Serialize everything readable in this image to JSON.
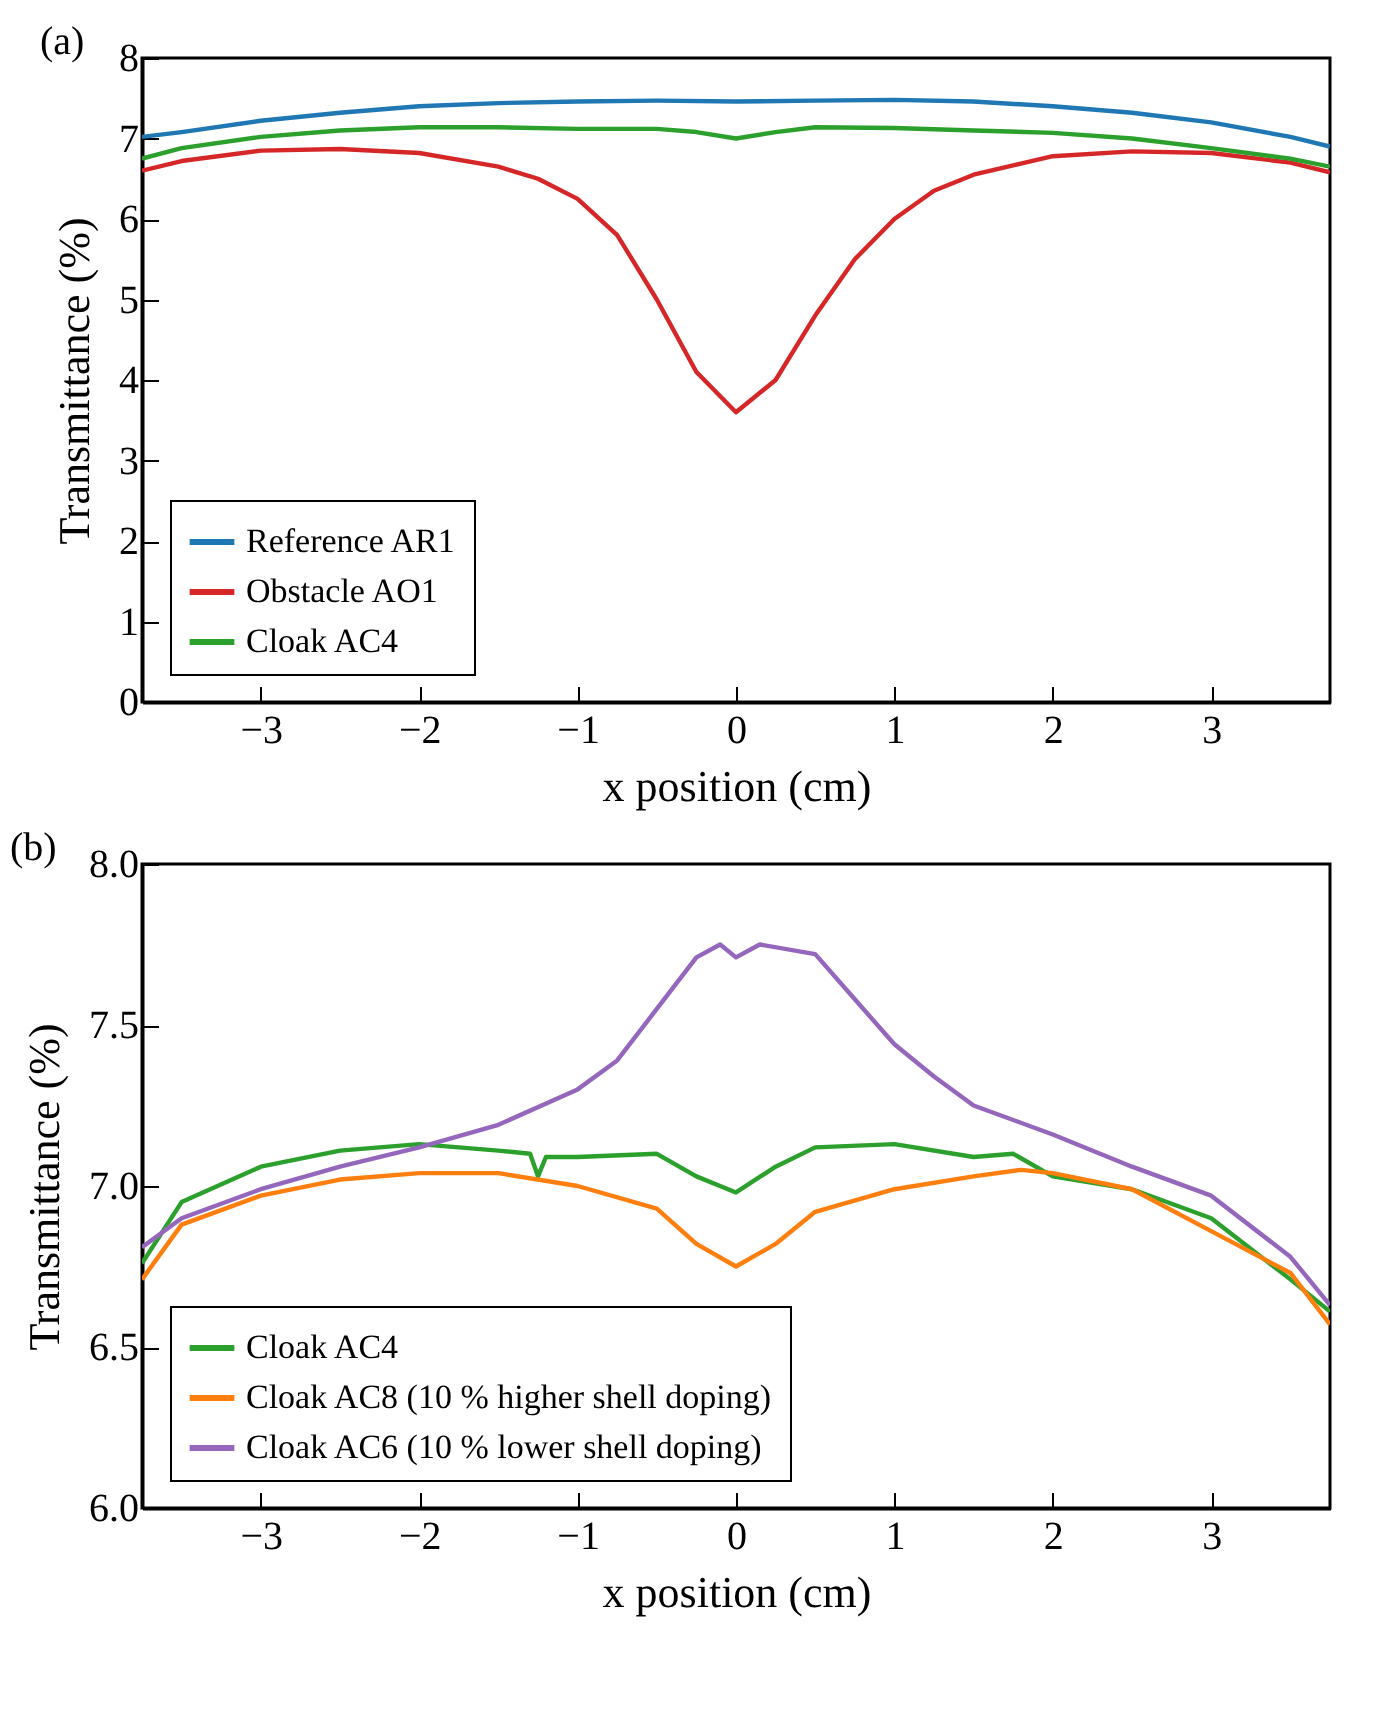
{
  "chart_data": [
    {
      "type": "line",
      "title": "(a)",
      "xlabel": "x position (cm)",
      "ylabel": "Transmittance (%)",
      "xlim": [
        -3.75,
        3.75
      ],
      "ylim": [
        0,
        8
      ],
      "xticks": [
        {
          "value": -3,
          "label": "−3"
        },
        {
          "value": -2,
          "label": "−2"
        },
        {
          "value": -1,
          "label": "−1"
        },
        0,
        1,
        2,
        3
      ],
      "yticks": [
        0,
        1,
        2,
        3,
        4,
        5,
        6,
        7,
        8
      ],
      "legend": "bottom left",
      "series": [
        {
          "name": "Reference AR1",
          "color": "#1f77b4",
          "x": [
            -3.75,
            -3.5,
            -3,
            -2.5,
            -2,
            -1.5,
            -1,
            -0.5,
            0,
            0.5,
            1,
            1.5,
            2,
            2.5,
            3,
            3.5,
            3.75
          ],
          "values": [
            7.02,
            7.08,
            7.22,
            7.32,
            7.4,
            7.44,
            7.46,
            7.47,
            7.46,
            7.47,
            7.48,
            7.46,
            7.4,
            7.32,
            7.2,
            7.02,
            6.9
          ]
        },
        {
          "name": "Obstacle AO1",
          "color": "#d62728",
          "x": [
            -3.75,
            -3.5,
            -3,
            -2.5,
            -2,
            -1.5,
            -1.25,
            -1,
            -0.75,
            -0.5,
            -0.25,
            0,
            0.25,
            0.5,
            0.75,
            1,
            1.25,
            1.5,
            2,
            2.5,
            3,
            3.5,
            3.75
          ],
          "values": [
            6.6,
            6.72,
            6.85,
            6.87,
            6.82,
            6.65,
            6.5,
            6.25,
            5.8,
            5.0,
            4.1,
            3.6,
            4.0,
            4.8,
            5.5,
            6.0,
            6.35,
            6.55,
            6.78,
            6.84,
            6.82,
            6.7,
            6.58
          ]
        },
        {
          "name": "Cloak AC4",
          "color": "#2ca02c",
          "x": [
            -3.75,
            -3.5,
            -3,
            -2.5,
            -2,
            -1.5,
            -1,
            -0.5,
            -0.25,
            0,
            0.25,
            0.5,
            1,
            1.5,
            2,
            2.5,
            3,
            3.5,
            3.75
          ],
          "values": [
            6.75,
            6.88,
            7.02,
            7.1,
            7.14,
            7.14,
            7.12,
            7.12,
            7.08,
            7.0,
            7.08,
            7.14,
            7.13,
            7.1,
            7.07,
            7.0,
            6.88,
            6.75,
            6.65
          ]
        }
      ]
    },
    {
      "type": "line",
      "title": "(b)",
      "xlabel": "x position (cm)",
      "ylabel": "Transmittance (%)",
      "xlim": [
        -3.75,
        3.75
      ],
      "ylim": [
        6,
        8
      ],
      "xticks": [
        {
          "value": -3,
          "label": "−3"
        },
        {
          "value": -2,
          "label": "−2"
        },
        {
          "value": -1,
          "label": "−1"
        },
        0,
        1,
        2,
        3
      ],
      "yticks": [
        {
          "value": 6,
          "label": "6.0"
        },
        6.5,
        {
          "value": 7,
          "label": "7.0"
        },
        7.5,
        {
          "value": 8,
          "label": "8.0"
        }
      ],
      "legend": "bottom left",
      "series": [
        {
          "name": "Cloak AC4",
          "color": "#2ca02c",
          "x": [
            -3.75,
            -3.5,
            -3,
            -2.5,
            -2,
            -1.5,
            -1.3,
            -1.25,
            -1.2,
            -1,
            -0.5,
            -0.25,
            0,
            0.25,
            0.5,
            1,
            1.5,
            1.75,
            2,
            2.5,
            3,
            3.5,
            3.75
          ],
          "values": [
            6.76,
            6.95,
            7.06,
            7.11,
            7.13,
            7.11,
            7.1,
            7.03,
            7.09,
            7.09,
            7.1,
            7.03,
            6.98,
            7.06,
            7.12,
            7.13,
            7.09,
            7.1,
            7.03,
            6.99,
            6.9,
            6.71,
            6.61
          ]
        },
        {
          "name": "Cloak AC8 (10 % higher shell doping)",
          "color": "#ff7f0e",
          "x": [
            -3.75,
            -3.5,
            -3,
            -2.5,
            -2,
            -1.5,
            -1,
            -0.5,
            -0.25,
            0,
            0.25,
            0.5,
            1,
            1.5,
            1.8,
            2,
            2.5,
            3,
            3.5,
            3.75
          ],
          "values": [
            6.71,
            6.88,
            6.97,
            7.02,
            7.04,
            7.04,
            7.0,
            6.93,
            6.82,
            6.75,
            6.82,
            6.92,
            6.99,
            7.03,
            7.05,
            7.04,
            6.99,
            6.86,
            6.73,
            6.57
          ]
        },
        {
          "name": "Cloak AC6 (10 % lower shell doping)",
          "color": "#9467bd",
          "x": [
            -3.75,
            -3.5,
            -3,
            -2.5,
            -2,
            -1.5,
            -1,
            -0.75,
            -0.5,
            -0.25,
            -0.1,
            0,
            0.15,
            0.5,
            0.75,
            1,
            1.25,
            1.5,
            2,
            2.5,
            3,
            3.5,
            3.75
          ],
          "values": [
            6.81,
            6.9,
            6.99,
            7.06,
            7.12,
            7.19,
            7.3,
            7.39,
            7.55,
            7.71,
            7.75,
            7.71,
            7.75,
            7.72,
            7.58,
            7.44,
            7.34,
            7.25,
            7.16,
            7.06,
            6.97,
            6.78,
            6.63
          ]
        }
      ]
    }
  ]
}
